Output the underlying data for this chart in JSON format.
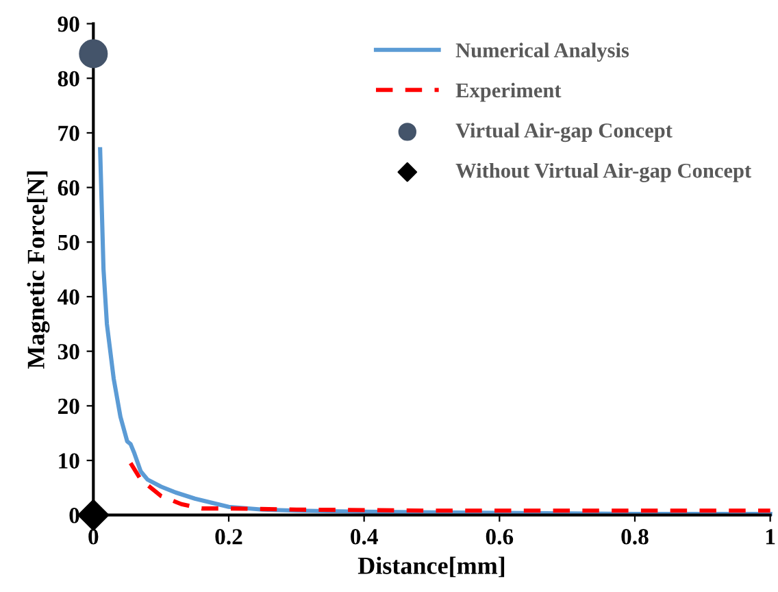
{
  "chart_data": {
    "type": "line",
    "xlabel": "Distance[mm]",
    "ylabel": "Magnetic Force[N]",
    "xlim": [
      0,
      1
    ],
    "ylim": [
      0,
      90
    ],
    "xticks": [
      0,
      0.2,
      0.4,
      0.6,
      0.8,
      1
    ],
    "yticks": [
      0,
      10,
      20,
      30,
      40,
      50,
      60,
      70,
      80,
      90
    ],
    "grid": false,
    "legend": "top right",
    "series": [
      {
        "name": "Numerical Analysis",
        "color": "#5b9bd5",
        "line_style": "solid",
        "x": [
          0.01,
          0.015,
          0.02,
          0.03,
          0.04,
          0.05,
          0.055,
          0.06,
          0.07,
          0.08,
          0.1,
          0.12,
          0.15,
          0.2,
          0.25,
          0.3,
          0.4,
          0.5,
          0.6,
          0.7,
          0.8,
          1
        ],
        "values": [
          67,
          45,
          35,
          25,
          18,
          13.5,
          13,
          11.5,
          8,
          6.5,
          5.2,
          4.2,
          3,
          1.5,
          1,
          0.8,
          0.6,
          0.5,
          0.4,
          0.3,
          0.2,
          0.2
        ]
      },
      {
        "name": "Experiment",
        "color": "#ff0000",
        "line_style": "dashed",
        "x": [
          0.055,
          0.07,
          0.09,
          0.1,
          0.13,
          0.16,
          0.2,
          0.3,
          0.5,
          0.7,
          1
        ],
        "values": [
          9.5,
          6.5,
          4.5,
          3.5,
          2,
          1.2,
          1.2,
          1,
          0.8,
          0.8,
          0.8
        ]
      },
      {
        "name": "Virtual Air-gap Concept",
        "type": "scatter",
        "color": "#44546a",
        "marker": "circle",
        "x": [
          0
        ],
        "values": [
          84.5
        ]
      },
      {
        "name": "Without Virtual Air-gap Concept",
        "type": "scatter",
        "color": "#000000",
        "marker": "diamond",
        "x": [
          0
        ],
        "values": [
          0
        ]
      }
    ]
  }
}
